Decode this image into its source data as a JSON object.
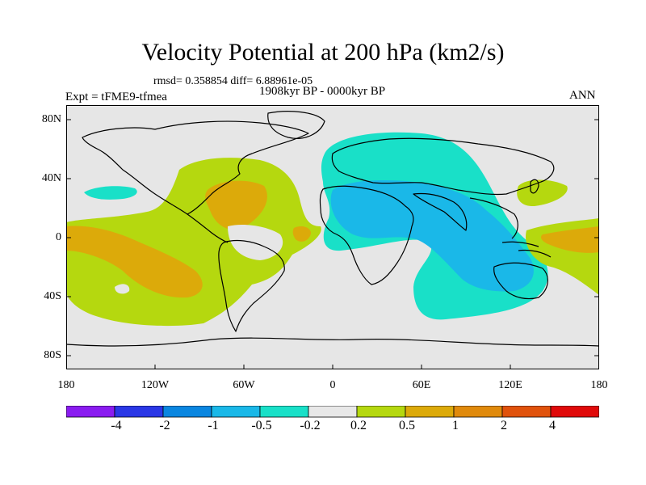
{
  "title": "Velocity Potential at 200 hPa (km2/s)",
  "stats": "rmsd= 0.358854 diff= 6.88961e-05",
  "period": "1908kyr BP - 0000kyr BP",
  "experiment": "Expt = tFME9-tfmea",
  "season": "ANN",
  "lat_labels": [
    "80N",
    "40N",
    "0",
    "40S",
    "80S"
  ],
  "lon_labels": [
    "180",
    "120W",
    "60W",
    "0",
    "60E",
    "120E",
    "180"
  ],
  "colorbar": {
    "colors": [
      "#8a1cf0",
      "#2a37e6",
      "#0a86e0",
      "#1ab8e8",
      "#19e0c8",
      "#e8e8e8",
      "#b5d80f",
      "#dcaa0a",
      "#e08a0c",
      "#e0520c",
      "#e00a0a"
    ],
    "labels": [
      "-4",
      "-2",
      "-1",
      "-0.5",
      "-0.2",
      "0.2",
      "0.5",
      "1",
      "2",
      "4"
    ]
  },
  "colors": {
    "ocean_background": "#e6e6e6",
    "neg_weak": "#19e0c8",
    "neg_mid": "#1ab8e8",
    "pos_weak": "#b5d80f",
    "pos_mid": "#dcaa0a"
  }
}
